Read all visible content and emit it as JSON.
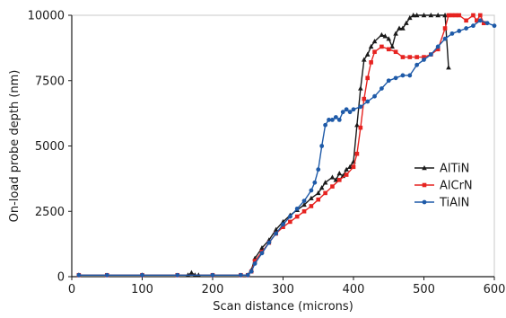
{
  "chart_data": {
    "type": "line",
    "title": "",
    "xlabel": "Scan distance (microns)",
    "ylabel": "On-load probe depth (nm)",
    "xlim": [
      0,
      600
    ],
    "ylim": [
      0,
      10000
    ],
    "x_ticks": [
      "0",
      "100",
      "200",
      "300",
      "400",
      "500",
      "600"
    ],
    "y_ticks": [
      "0",
      "2500",
      "5000",
      "7500",
      "10000"
    ],
    "grid": false,
    "legend": "right",
    "series": [
      {
        "name": "AlTiN",
        "color": "#1a1a1a",
        "marker": "triangle",
        "x": [
          10,
          100,
          165,
          170,
          175,
          180,
          250,
          255,
          260,
          270,
          280,
          290,
          300,
          310,
          320,
          330,
          340,
          350,
          355,
          360,
          370,
          375,
          380,
          385,
          390,
          395,
          400,
          405,
          410,
          415,
          420,
          425,
          430,
          440,
          445,
          450,
          455,
          460,
          465,
          470,
          475,
          480,
          485,
          490,
          500,
          510,
          520,
          530,
          535
        ],
        "y": [
          60,
          60,
          60,
          150,
          60,
          60,
          60,
          250,
          700,
          1100,
          1400,
          1800,
          2100,
          2350,
          2550,
          2750,
          3000,
          3200,
          3400,
          3600,
          3800,
          3700,
          3950,
          3850,
          4100,
          4200,
          4400,
          5800,
          7200,
          8300,
          8500,
          8800,
          9000,
          9250,
          9200,
          9100,
          8800,
          9300,
          9500,
          9500,
          9700,
          9900,
          10000,
          10000,
          10000,
          10000,
          10000,
          10000,
          8000
        ]
      },
      {
        "name": "AlCrN",
        "color": "#e62320",
        "marker": "square",
        "x": [
          10,
          50,
          100,
          150,
          200,
          240,
          250,
          255,
          260,
          270,
          280,
          290,
          300,
          310,
          320,
          330,
          340,
          350,
          360,
          370,
          380,
          390,
          400,
          405,
          410,
          415,
          420,
          425,
          430,
          440,
          450,
          460,
          470,
          480,
          490,
          500,
          510,
          520,
          530,
          535,
          540,
          545,
          550,
          560,
          570,
          575,
          580,
          585
        ],
        "y": [
          60,
          60,
          60,
          60,
          60,
          60,
          60,
          200,
          600,
          950,
          1300,
          1650,
          1900,
          2100,
          2300,
          2500,
          2700,
          2950,
          3200,
          3450,
          3700,
          3900,
          4200,
          4700,
          5700,
          6800,
          7600,
          8200,
          8600,
          8800,
          8700,
          8600,
          8400,
          8400,
          8400,
          8400,
          8500,
          8700,
          9500,
          10000,
          10000,
          10000,
          10000,
          9800,
          10000,
          9800,
          10000,
          9700
        ]
      },
      {
        "name": "TiAlN",
        "color": "#1e5aa8",
        "marker": "circle",
        "x": [
          10,
          50,
          100,
          150,
          200,
          240,
          250,
          255,
          260,
          270,
          280,
          290,
          300,
          310,
          320,
          330,
          340,
          345,
          350,
          355,
          360,
          365,
          370,
          375,
          380,
          385,
          390,
          395,
          400,
          410,
          420,
          430,
          440,
          450,
          460,
          470,
          480,
          490,
          500,
          510,
          520,
          530,
          540,
          550,
          560,
          570,
          580,
          590,
          600
        ],
        "y": [
          60,
          60,
          60,
          60,
          60,
          60,
          60,
          200,
          500,
          900,
          1300,
          1650,
          2000,
          2300,
          2600,
          2900,
          3300,
          3600,
          4100,
          5000,
          5800,
          6000,
          6000,
          6100,
          6000,
          6300,
          6400,
          6300,
          6400,
          6500,
          6700,
          6900,
          7200,
          7500,
          7600,
          7700,
          7700,
          8100,
          8300,
          8500,
          8800,
          9100,
          9300,
          9400,
          9500,
          9600,
          9800,
          9700,
          9600
        ]
      }
    ]
  }
}
